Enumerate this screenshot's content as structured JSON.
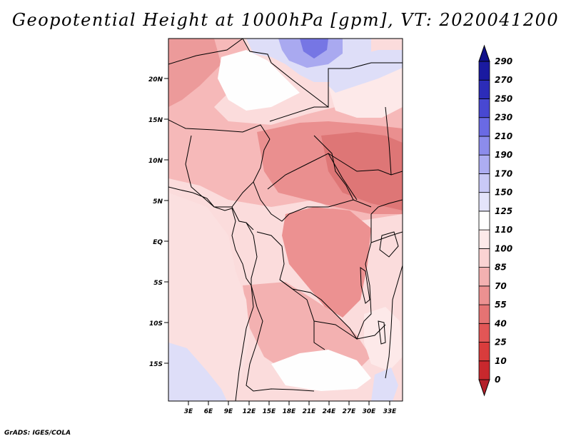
{
  "title": "Geopotential Height at 1000hPa [gpm], VT: 2020041200",
  "footer": "GrADS: IGES/COLA",
  "map": {
    "lon_labels": [
      "3E",
      "6E",
      "9E",
      "12E",
      "15E",
      "18E",
      "21E",
      "24E",
      "27E",
      "30E",
      "33E"
    ],
    "lat_labels": [
      "20N",
      "15N",
      "10N",
      "5N",
      "EQ",
      "5S",
      "10S",
      "15S"
    ]
  },
  "colorbar": {
    "levels": [
      "0",
      "10",
      "25",
      "40",
      "55",
      "70",
      "85",
      "100",
      "110",
      "125",
      "150",
      "170",
      "190",
      "210",
      "230",
      "250",
      "270",
      "290"
    ],
    "colors": [
      "#b3202a",
      "#c8282d",
      "#d93c3c",
      "#e25656",
      "#e57373",
      "#ec9191",
      "#f3b1b1",
      "#fad3d3",
      "#fde9e9",
      "#fefefe",
      "#e4e4fa",
      "#c9c9f6",
      "#adadf2",
      "#8c8cec",
      "#6a6ae4",
      "#4848d2",
      "#2c2cb8",
      "#1a1aa0",
      "#10108a"
    ],
    "colors_note": ""
  },
  "palette": {
    "ocean_light": "#fbdcdc",
    "land_mid": "#f6b9b9",
    "land_deep": "#ea8f8f",
    "land_deepest": "#de7676",
    "white_patch": "#fefefe",
    "blue_light": "#dedef8",
    "blue_mid": "#a9a9f0",
    "blue_deep": "#7676e4"
  }
}
